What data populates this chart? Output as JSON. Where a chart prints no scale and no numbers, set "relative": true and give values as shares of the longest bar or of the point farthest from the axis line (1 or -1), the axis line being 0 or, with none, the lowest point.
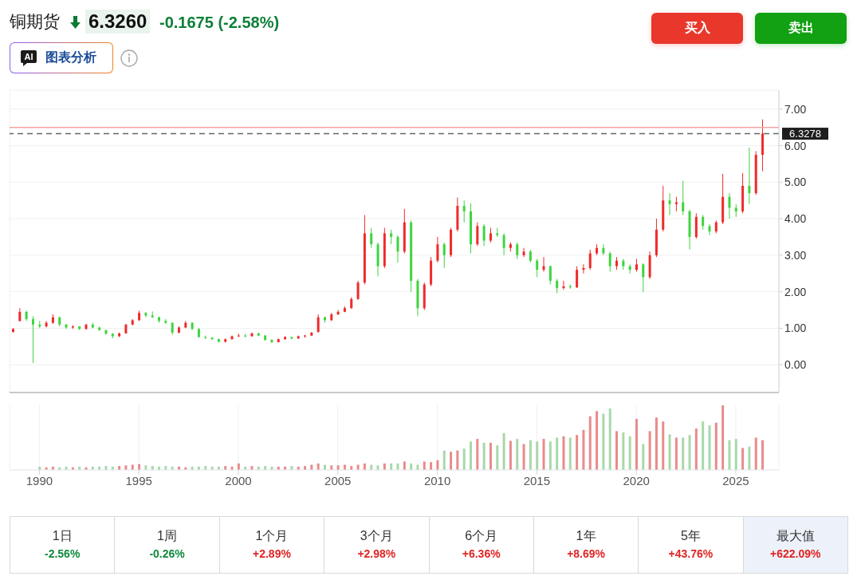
{
  "chart_data": [
    {
      "type": "candlestick",
      "title": "铜期货",
      "annotations": [
        "6.3260",
        "-0.1675 (-2.58%)",
        "AI",
        "图表分析",
        "买入",
        "卖出"
      ],
      "x": [
        "1988-09",
        "1989-01",
        "1989-05",
        "1989-09",
        "1990-01",
        "1990-05",
        "1990-09",
        "1991-01",
        "1991-05",
        "1991-09",
        "1992-01",
        "1992-05",
        "1992-09",
        "1993-01",
        "1993-05",
        "1993-09",
        "1994-01",
        "1994-05",
        "1994-09",
        "1995-01",
        "1995-05",
        "1995-09",
        "1996-01",
        "1996-05",
        "1996-09",
        "1997-01",
        "1997-05",
        "1997-09",
        "1998-01",
        "1998-05",
        "1998-09",
        "1999-01",
        "1999-05",
        "1999-09",
        "2000-01",
        "2000-05",
        "2000-09",
        "2001-01",
        "2001-05",
        "2001-09",
        "2002-01",
        "2002-05",
        "2002-09",
        "2003-01",
        "2003-05",
        "2003-09",
        "2004-01",
        "2004-05",
        "2004-09",
        "2005-01",
        "2005-05",
        "2005-09",
        "2006-01",
        "2006-05",
        "2006-09",
        "2007-01",
        "2007-05",
        "2007-09",
        "2008-01",
        "2008-05",
        "2008-09",
        "2009-01",
        "2009-05",
        "2009-09",
        "2010-01",
        "2010-05",
        "2010-09",
        "2011-01",
        "2011-05",
        "2011-09",
        "2012-01",
        "2012-05",
        "2012-09",
        "2013-01",
        "2013-05",
        "2013-09",
        "2014-01",
        "2014-05",
        "2014-09",
        "2015-01",
        "2015-05",
        "2015-09",
        "2016-01",
        "2016-05",
        "2016-09",
        "2017-01",
        "2017-05",
        "2017-09",
        "2018-01",
        "2018-05",
        "2018-09",
        "2019-01",
        "2019-05",
        "2019-09",
        "2020-01",
        "2020-05",
        "2020-09",
        "2021-01",
        "2021-05",
        "2021-09",
        "2022-01",
        "2022-05",
        "2022-09",
        "2023-01",
        "2023-05",
        "2023-09",
        "2024-01",
        "2024-05",
        "2024-09",
        "2025-01",
        "2025-05",
        "2025-09",
        "2026-01",
        "2026-05"
      ],
      "ohlc": [
        [
          0.9,
          1.0,
          0.88,
          0.98
        ],
        [
          1.2,
          1.55,
          1.18,
          1.45
        ],
        [
          1.45,
          1.48,
          1.2,
          1.25
        ],
        [
          1.25,
          1.33,
          0.05,
          1.1
        ],
        [
          1.1,
          1.2,
          1.0,
          1.05
        ],
        [
          1.05,
          1.2,
          1.02,
          1.15
        ],
        [
          1.15,
          1.38,
          1.12,
          1.3
        ],
        [
          1.3,
          1.32,
          1.05,
          1.1
        ],
        [
          1.1,
          1.12,
          0.98,
          1.02
        ],
        [
          1.02,
          1.08,
          0.98,
          1.05
        ],
        [
          1.05,
          1.06,
          0.95,
          0.98
        ],
        [
          0.98,
          1.12,
          0.96,
          1.1
        ],
        [
          1.1,
          1.15,
          1.0,
          1.02
        ],
        [
          1.02,
          1.04,
          0.93,
          0.95
        ],
        [
          0.95,
          0.96,
          0.82,
          0.85
        ],
        [
          0.85,
          0.87,
          0.72,
          0.78
        ],
        [
          0.78,
          0.88,
          0.76,
          0.86
        ],
        [
          0.86,
          1.12,
          0.85,
          1.1
        ],
        [
          1.1,
          1.25,
          1.08,
          1.22
        ],
        [
          1.22,
          1.48,
          1.2,
          1.42
        ],
        [
          1.42,
          1.45,
          1.3,
          1.35
        ],
        [
          1.35,
          1.46,
          1.28,
          1.3
        ],
        [
          1.3,
          1.32,
          1.15,
          1.2
        ],
        [
          1.2,
          1.25,
          1.12,
          1.15
        ],
        [
          1.15,
          1.16,
          0.82,
          0.88
        ],
        [
          0.88,
          1.05,
          0.86,
          1.02
        ],
        [
          1.02,
          1.2,
          1.0,
          1.15
        ],
        [
          1.15,
          1.16,
          0.95,
          0.98
        ],
        [
          0.98,
          1.0,
          0.74,
          0.76
        ],
        [
          0.76,
          0.8,
          0.7,
          0.74
        ],
        [
          0.74,
          0.76,
          0.68,
          0.7
        ],
        [
          0.7,
          0.72,
          0.61,
          0.63
        ],
        [
          0.63,
          0.72,
          0.61,
          0.7
        ],
        [
          0.7,
          0.8,
          0.69,
          0.78
        ],
        [
          0.78,
          0.85,
          0.76,
          0.8
        ],
        [
          0.8,
          0.84,
          0.75,
          0.78
        ],
        [
          0.78,
          0.88,
          0.77,
          0.86
        ],
        [
          0.86,
          0.88,
          0.78,
          0.8
        ],
        [
          0.8,
          0.82,
          0.66,
          0.68
        ],
        [
          0.68,
          0.7,
          0.6,
          0.62
        ],
        [
          0.62,
          0.72,
          0.61,
          0.7
        ],
        [
          0.7,
          0.78,
          0.69,
          0.76
        ],
        [
          0.76,
          0.77,
          0.7,
          0.72
        ],
        [
          0.72,
          0.8,
          0.71,
          0.78
        ],
        [
          0.78,
          0.82,
          0.74,
          0.8
        ],
        [
          0.8,
          0.9,
          0.79,
          0.88
        ],
        [
          0.9,
          1.38,
          0.88,
          1.3
        ],
        [
          1.3,
          1.32,
          1.15,
          1.22
        ],
        [
          1.22,
          1.42,
          1.2,
          1.38
        ],
        [
          1.38,
          1.5,
          1.36,
          1.45
        ],
        [
          1.45,
          1.6,
          1.44,
          1.55
        ],
        [
          1.55,
          1.85,
          1.53,
          1.8
        ],
        [
          1.8,
          2.3,
          1.78,
          2.25
        ],
        [
          2.25,
          4.1,
          2.2,
          3.6
        ],
        [
          3.6,
          3.75,
          3.2,
          3.3
        ],
        [
          3.3,
          3.35,
          2.42,
          2.7
        ],
        [
          2.7,
          3.75,
          2.65,
          3.6
        ],
        [
          3.6,
          3.7,
          3.3,
          3.5
        ],
        [
          3.5,
          3.55,
          2.8,
          3.1
        ],
        [
          3.1,
          4.27,
          3.05,
          3.9
        ],
        [
          3.9,
          3.95,
          2.0,
          2.3
        ],
        [
          2.3,
          2.35,
          1.33,
          1.55
        ],
        [
          1.55,
          2.25,
          1.5,
          2.2
        ],
        [
          2.2,
          2.95,
          2.15,
          2.85
        ],
        [
          2.85,
          3.5,
          2.8,
          3.3
        ],
        [
          3.3,
          3.35,
          2.65,
          3.0
        ],
        [
          3.0,
          3.75,
          2.95,
          3.7
        ],
        [
          3.7,
          4.58,
          3.65,
          4.35
        ],
        [
          4.35,
          4.5,
          3.9,
          4.2
        ],
        [
          4.2,
          4.42,
          3.05,
          3.3
        ],
        [
          3.3,
          3.9,
          3.25,
          3.8
        ],
        [
          3.8,
          3.85,
          3.25,
          3.4
        ],
        [
          3.4,
          3.75,
          3.35,
          3.6
        ],
        [
          3.6,
          3.75,
          3.5,
          3.55
        ],
        [
          3.55,
          3.6,
          3.0,
          3.2
        ],
        [
          3.2,
          3.35,
          3.1,
          3.3
        ],
        [
          3.3,
          3.35,
          2.9,
          3.0
        ],
        [
          3.0,
          3.2,
          2.95,
          3.1
        ],
        [
          3.1,
          3.15,
          2.8,
          2.85
        ],
        [
          2.85,
          2.9,
          2.4,
          2.6
        ],
        [
          2.6,
          2.95,
          2.55,
          2.7
        ],
        [
          2.7,
          2.72,
          2.2,
          2.3
        ],
        [
          2.3,
          2.35,
          1.96,
          2.1
        ],
        [
          2.1,
          2.3,
          2.05,
          2.15
        ],
        [
          2.15,
          2.2,
          2.08,
          2.12
        ],
        [
          2.12,
          2.7,
          2.1,
          2.6
        ],
        [
          2.6,
          2.75,
          2.5,
          2.65
        ],
        [
          2.65,
          3.15,
          2.6,
          3.05
        ],
        [
          3.05,
          3.3,
          3.0,
          3.2
        ],
        [
          3.2,
          3.3,
          3.0,
          3.05
        ],
        [
          3.05,
          3.1,
          2.55,
          2.7
        ],
        [
          2.7,
          2.95,
          2.6,
          2.85
        ],
        [
          2.85,
          2.9,
          2.6,
          2.7
        ],
        [
          2.7,
          2.75,
          2.5,
          2.6
        ],
        [
          2.6,
          2.9,
          2.55,
          2.75
        ],
        [
          2.75,
          2.78,
          1.99,
          2.4
        ],
        [
          2.4,
          3.1,
          2.35,
          3.0
        ],
        [
          3.0,
          4.0,
          2.95,
          3.7
        ],
        [
          3.7,
          4.9,
          3.65,
          4.5
        ],
        [
          4.5,
          4.7,
          4.1,
          4.4
        ],
        [
          4.4,
          4.6,
          4.2,
          4.45
        ],
        [
          4.45,
          5.04,
          4.1,
          4.2
        ],
        [
          4.2,
          4.25,
          3.16,
          3.5
        ],
        [
          3.5,
          4.15,
          3.45,
          4.05
        ],
        [
          4.05,
          4.1,
          3.7,
          3.8
        ],
        [
          3.8,
          3.85,
          3.55,
          3.65
        ],
        [
          3.65,
          3.95,
          3.6,
          3.9
        ],
        [
          3.9,
          5.23,
          3.85,
          4.6
        ],
        [
          4.6,
          4.7,
          4.0,
          4.3
        ],
        [
          4.3,
          4.4,
          4.05,
          4.2
        ],
        [
          4.2,
          5.25,
          4.15,
          4.9
        ],
        [
          4.9,
          5.95,
          4.4,
          4.7
        ],
        [
          4.7,
          5.85,
          4.65,
          5.75
        ],
        [
          5.75,
          6.72,
          5.3,
          6.33
        ]
      ],
      "colors": [
        "#ef2b2b",
        "#ef2b2b",
        "#3fd43f",
        "#3fd43f",
        "#3fd43f",
        "#ef2b2b",
        "#ef2b2b",
        "#3fd43f",
        "#3fd43f",
        "#ef2b2b",
        "#3fd43f",
        "#ef2b2b",
        "#3fd43f",
        "#3fd43f",
        "#3fd43f",
        "#3fd43f",
        "#ef2b2b",
        "#ef2b2b",
        "#ef2b2b",
        "#ef2b2b",
        "#3fd43f",
        "#3fd43f",
        "#3fd43f",
        "#3fd43f",
        "#3fd43f",
        "#ef2b2b",
        "#ef2b2b",
        "#3fd43f",
        "#3fd43f",
        "#3fd43f",
        "#3fd43f",
        "#3fd43f",
        "#ef2b2b",
        "#ef2b2b",
        "#ef2b2b",
        "#3fd43f",
        "#ef2b2b",
        "#3fd43f",
        "#3fd43f",
        "#3fd43f",
        "#ef2b2b",
        "#ef2b2b",
        "#3fd43f",
        "#ef2b2b",
        "#ef2b2b",
        "#ef2b2b",
        "#ef2b2b",
        "#3fd43f",
        "#ef2b2b",
        "#ef2b2b",
        "#ef2b2b",
        "#ef2b2b",
        "#ef2b2b",
        "#ef2b2b",
        "#3fd43f",
        "#3fd43f",
        "#ef2b2b",
        "#3fd43f",
        "#3fd43f",
        "#ef2b2b",
        "#3fd43f",
        "#3fd43f",
        "#ef2b2b",
        "#ef2b2b",
        "#ef2b2b",
        "#3fd43f",
        "#ef2b2b",
        "#ef2b2b",
        "#3fd43f",
        "#3fd43f",
        "#ef2b2b",
        "#3fd43f",
        "#ef2b2b",
        "#3fd43f",
        "#3fd43f",
        "#ef2b2b",
        "#3fd43f",
        "#ef2b2b",
        "#3fd43f",
        "#3fd43f",
        "#ef2b2b",
        "#3fd43f",
        "#3fd43f",
        "#ef2b2b",
        "#3fd43f",
        "#ef2b2b",
        "#ef2b2b",
        "#ef2b2b",
        "#ef2b2b",
        "#3fd43f",
        "#3fd43f",
        "#ef2b2b",
        "#3fd43f",
        "#3fd43f",
        "#ef2b2b",
        "#3fd43f",
        "#ef2b2b",
        "#ef2b2b",
        "#ef2b2b",
        "#3fd43f",
        "#ef2b2b",
        "#3fd43f",
        "#3fd43f",
        "#ef2b2b",
        "#3fd43f",
        "#3fd43f",
        "#ef2b2b",
        "#ef2b2b",
        "#3fd43f",
        "#3fd43f",
        "#ef2b2b",
        "#3fd43f",
        "#ef2b2b",
        "#ef2b2b"
      ],
      "xlim": [
        "1988-07",
        "2027-03"
      ],
      "xticks": [
        "1990",
        "1995",
        "2000",
        "2005",
        "2010",
        "2015",
        "2020",
        "2025"
      ],
      "ylim": [
        -0.76,
        7.52
      ],
      "yticks": [
        {
          "value": 0,
          "label": "0.00"
        },
        {
          "value": 1,
          "label": "1.00"
        },
        {
          "value": 2,
          "label": "2.00"
        },
        {
          "value": 3,
          "label": "3.00"
        },
        {
          "value": 4,
          "label": "4.00"
        },
        {
          "value": 5,
          "label": "5.00"
        },
        {
          "value": 6,
          "label": "6.00"
        },
        {
          "value": 7,
          "label": "7.00"
        }
      ],
      "grid": true,
      "tick_labels": "y",
      "ref_lines": [
        {
          "axis": "y",
          "value": 6.5,
          "color": "#f4a3a3"
        },
        {
          "axis": "y",
          "value": 6.3278,
          "label": "6.3278",
          "color": "#666666",
          "line_style": "dashed"
        }
      ]
    },
    {
      "type": "bar",
      "relative": true,
      "x": [
        "1990-01",
        "1990-05",
        "1990-09",
        "1991-01",
        "1991-05",
        "1991-09",
        "1992-01",
        "1992-05",
        "1992-09",
        "1993-01",
        "1993-05",
        "1993-09",
        "1994-01",
        "1994-05",
        "1994-09",
        "1995-01",
        "1995-05",
        "1995-09",
        "1996-01",
        "1996-05",
        "1996-09",
        "1997-01",
        "1997-05",
        "1997-09",
        "1998-01",
        "1998-05",
        "1998-09",
        "1999-01",
        "1999-05",
        "1999-09",
        "2000-01",
        "2000-05",
        "2000-09",
        "2001-01",
        "2001-05",
        "2001-09",
        "2002-01",
        "2002-05",
        "2002-09",
        "2003-01",
        "2003-05",
        "2003-09",
        "2004-01",
        "2004-05",
        "2004-09",
        "2005-01",
        "2005-05",
        "2005-09",
        "2006-01",
        "2006-05",
        "2006-09",
        "2007-01",
        "2007-05",
        "2007-09",
        "2008-01",
        "2008-05",
        "2008-09",
        "2009-01",
        "2009-05",
        "2009-09",
        "2010-01",
        "2010-05",
        "2010-09",
        "2011-01",
        "2011-05",
        "2011-09",
        "2012-01",
        "2012-05",
        "2012-09",
        "2013-01",
        "2013-05",
        "2013-09",
        "2014-01",
        "2014-05",
        "2014-09",
        "2015-01",
        "2015-05",
        "2015-09",
        "2016-01",
        "2016-05",
        "2016-09",
        "2017-01",
        "2017-05",
        "2017-09",
        "2018-01",
        "2018-05",
        "2018-09",
        "2019-01",
        "2019-05",
        "2019-09",
        "2020-01",
        "2020-05",
        "2020-09",
        "2021-01",
        "2021-05",
        "2021-09",
        "2022-01",
        "2022-05",
        "2022-09",
        "2023-01",
        "2023-05",
        "2023-09",
        "2024-01",
        "2024-05",
        "2024-09",
        "2025-01",
        "2025-05",
        "2025-09",
        "2026-01",
        "2026-05"
      ],
      "values": [
        0.05,
        0.04,
        0.05,
        0.04,
        0.05,
        0.04,
        0.05,
        0.04,
        0.05,
        0.05,
        0.06,
        0.05,
        0.06,
        0.07,
        0.08,
        0.09,
        0.07,
        0.06,
        0.05,
        0.06,
        0.05,
        0.05,
        0.04,
        0.05,
        0.05,
        0.06,
        0.05,
        0.05,
        0.06,
        0.05,
        0.1,
        0.05,
        0.06,
        0.05,
        0.06,
        0.05,
        0.05,
        0.05,
        0.06,
        0.05,
        0.06,
        0.08,
        0.1,
        0.08,
        0.07,
        0.07,
        0.08,
        0.06,
        0.08,
        0.1,
        0.08,
        0.07,
        0.1,
        0.1,
        0.1,
        0.13,
        0.1,
        0.08,
        0.13,
        0.12,
        0.15,
        0.3,
        0.28,
        0.3,
        0.33,
        0.44,
        0.48,
        0.42,
        0.42,
        0.38,
        0.57,
        0.45,
        0.48,
        0.4,
        0.46,
        0.44,
        0.48,
        0.44,
        0.5,
        0.52,
        0.5,
        0.54,
        0.62,
        0.83,
        0.91,
        0.87,
        0.95,
        0.6,
        0.58,
        0.52,
        0.79,
        0.4,
        0.6,
        0.81,
        0.75,
        0.55,
        0.5,
        0.5,
        0.54,
        0.64,
        0.75,
        0.69,
        0.73,
        1,
        0.46,
        0.48,
        0.34,
        0.36,
        0.5,
        0.46
      ],
      "colors": [
        "#a8d8aa",
        "#e98b8b",
        "#e98b8b",
        "#a8d8aa",
        "#a8d8aa",
        "#e98b8b",
        "#a8d8aa",
        "#e98b8b",
        "#a8d8aa",
        "#a8d8aa",
        "#a8d8aa",
        "#a8d8aa",
        "#e98b8b",
        "#e98b8b",
        "#e98b8b",
        "#e98b8b",
        "#a8d8aa",
        "#a8d8aa",
        "#a8d8aa",
        "#a8d8aa",
        "#a8d8aa",
        "#e98b8b",
        "#e98b8b",
        "#a8d8aa",
        "#a8d8aa",
        "#a8d8aa",
        "#a8d8aa",
        "#a8d8aa",
        "#e98b8b",
        "#e98b8b",
        "#e98b8b",
        "#a8d8aa",
        "#e98b8b",
        "#a8d8aa",
        "#a8d8aa",
        "#a8d8aa",
        "#e98b8b",
        "#e98b8b",
        "#a8d8aa",
        "#e98b8b",
        "#e98b8b",
        "#e98b8b",
        "#e98b8b",
        "#a8d8aa",
        "#e98b8b",
        "#e98b8b",
        "#e98b8b",
        "#e98b8b",
        "#e98b8b",
        "#e98b8b",
        "#a8d8aa",
        "#a8d8aa",
        "#e98b8b",
        "#a8d8aa",
        "#a8d8aa",
        "#e98b8b",
        "#a8d8aa",
        "#a8d8aa",
        "#e98b8b",
        "#e98b8b",
        "#e98b8b",
        "#a8d8aa",
        "#e98b8b",
        "#e98b8b",
        "#a8d8aa",
        "#a8d8aa",
        "#e98b8b",
        "#a8d8aa",
        "#e98b8b",
        "#a8d8aa",
        "#a8d8aa",
        "#e98b8b",
        "#a8d8aa",
        "#e98b8b",
        "#a8d8aa",
        "#a8d8aa",
        "#e98b8b",
        "#a8d8aa",
        "#a8d8aa",
        "#e98b8b",
        "#a8d8aa",
        "#e98b8b",
        "#e98b8b",
        "#e98b8b",
        "#e98b8b",
        "#a8d8aa",
        "#a8d8aa",
        "#e98b8b",
        "#a8d8aa",
        "#a8d8aa",
        "#e98b8b",
        "#a8d8aa",
        "#e98b8b",
        "#e98b8b",
        "#e98b8b",
        "#a8d8aa",
        "#e98b8b",
        "#a8d8aa",
        "#a8d8aa",
        "#e98b8b",
        "#a8d8aa",
        "#a8d8aa",
        "#e98b8b",
        "#e98b8b",
        "#a8d8aa",
        "#a8d8aa",
        "#e98b8b",
        "#a8d8aa",
        "#e98b8b",
        "#e98b8b"
      ],
      "xlim": [
        "1988-07",
        "2027-03"
      ],
      "xticks": [
        "1990",
        "1995",
        "2000",
        "2005",
        "2010",
        "2015",
        "2020",
        "2025"
      ],
      "grid": "x",
      "tick_labels": "x"
    },
    {
      "type": "other",
      "categories": [
        "1日",
        "1周",
        "1个月",
        "3个月",
        "6个月",
        "1年",
        "5年",
        "最大值"
      ],
      "value_labels": [
        "-2.56%",
        "-0.26%",
        "+2.89%",
        "+2.98%",
        "+6.36%",
        "+8.69%",
        "+43.76%",
        "+622.09%"
      ]
    }
  ]
}
